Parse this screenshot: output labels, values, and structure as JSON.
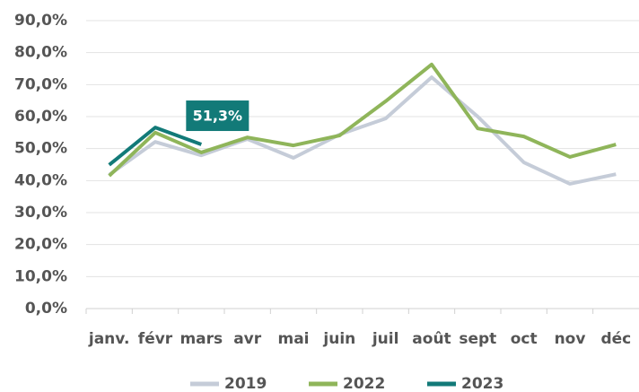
{
  "chart_data": {
    "type": "line",
    "categories": [
      "janv.",
      "févr",
      "mars",
      "avr",
      "mai",
      "juin",
      "juil",
      "août",
      "sept",
      "oct",
      "nov",
      "déc"
    ],
    "series": [
      {
        "name": "2019",
        "color": "#c5ccd8",
        "values": [
          41.8,
          52.1,
          47.9,
          53.0,
          47.1,
          54.4,
          59.4,
          72.3,
          60.0,
          45.7,
          39.0,
          42.0
        ]
      },
      {
        "name": "2022",
        "color": "#8fb55a",
        "values": [
          41.5,
          55.0,
          48.8,
          53.5,
          51.0,
          54.1,
          64.8,
          76.3,
          56.3,
          53.8,
          47.4,
          51.3
        ]
      },
      {
        "name": "2023",
        "color": "#127a78",
        "values": [
          44.9,
          56.6,
          51.3,
          null,
          null,
          null,
          null,
          null,
          null,
          null,
          null,
          null
        ],
        "value_labels": [
          null,
          null,
          "51,3%",
          null,
          null,
          null,
          null,
          null,
          null,
          null,
          null,
          null
        ]
      }
    ],
    "ylim": [
      0,
      90
    ],
    "yticks": [
      {
        "value": 0,
        "label": "0,0%"
      },
      {
        "value": 10,
        "label": "10,0%"
      },
      {
        "value": 20,
        "label": "20,0%"
      },
      {
        "value": 30,
        "label": "30,0%"
      },
      {
        "value": 40,
        "label": "40,0%"
      },
      {
        "value": 50,
        "label": "50,0%"
      },
      {
        "value": 60,
        "label": "60,0%"
      },
      {
        "value": 70,
        "label": "70,0%"
      },
      {
        "value": 80,
        "label": "80,0%"
      },
      {
        "value": 90,
        "label": "90,0%"
      }
    ],
    "grid": true,
    "legend": "bottom"
  }
}
